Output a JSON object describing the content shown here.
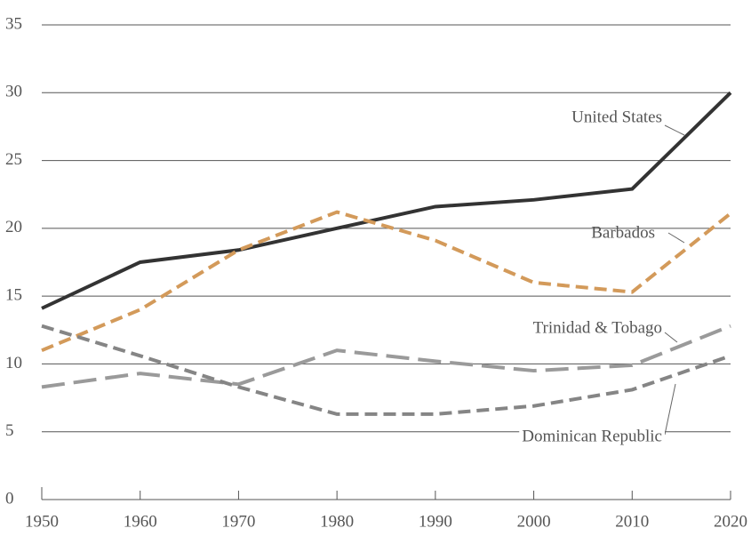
{
  "chart_data": {
    "type": "line",
    "x": [
      1950,
      1960,
      1970,
      1980,
      1990,
      2000,
      2010,
      2020
    ],
    "xlim": [
      1950,
      2020
    ],
    "xticks": [
      1950,
      1960,
      1970,
      1980,
      1990,
      2000,
      2010,
      2020
    ],
    "ylim": [
      0,
      35
    ],
    "yticks": [
      0,
      5,
      10,
      15,
      20,
      25,
      30,
      35
    ],
    "grid": true,
    "series": [
      {
        "name": "United States",
        "color": "#333333",
        "dash": "solid",
        "values": [
          14.1,
          17.5,
          18.4,
          20.0,
          21.6,
          22.1,
          22.9,
          30.0
        ]
      },
      {
        "name": "Barbados",
        "color": "#d39a5a",
        "dash": "dashed",
        "values": [
          11.0,
          14.0,
          18.4,
          21.2,
          19.1,
          16.0,
          15.3,
          21.1
        ]
      },
      {
        "name": "Trinidad & Tobago",
        "color": "#9a9a9a",
        "dash": "longdash",
        "values": [
          8.3,
          9.3,
          8.5,
          11.0,
          10.2,
          9.5,
          9.9,
          12.8
        ]
      },
      {
        "name": "Dominican Republic",
        "color": "#858585",
        "dash": "dashed",
        "values": [
          12.8,
          10.6,
          8.3,
          6.3,
          6.3,
          6.9,
          8.1,
          10.6
        ]
      }
    ]
  }
}
